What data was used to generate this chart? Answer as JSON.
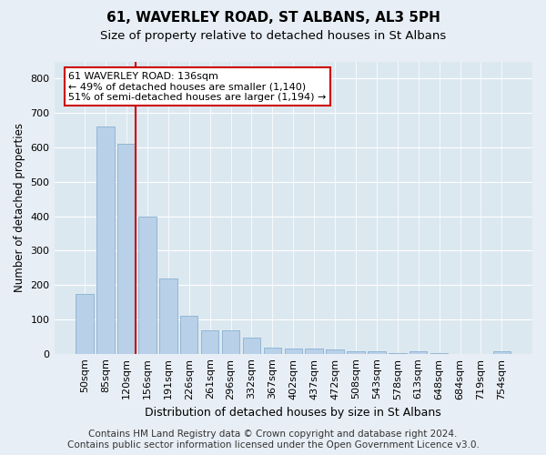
{
  "title": "61, WAVERLEY ROAD, ST ALBANS, AL3 5PH",
  "subtitle": "Size of property relative to detached houses in St Albans",
  "xlabel": "Distribution of detached houses by size in St Albans",
  "ylabel": "Number of detached properties",
  "bar_labels": [
    "50sqm",
    "85sqm",
    "120sqm",
    "156sqm",
    "191sqm",
    "226sqm",
    "261sqm",
    "296sqm",
    "332sqm",
    "367sqm",
    "402sqm",
    "437sqm",
    "472sqm",
    "508sqm",
    "543sqm",
    "578sqm",
    "613sqm",
    "648sqm",
    "684sqm",
    "719sqm",
    "754sqm"
  ],
  "bar_values": [
    175,
    660,
    610,
    400,
    218,
    110,
    67,
    67,
    48,
    18,
    16,
    16,
    13,
    8,
    8,
    3,
    8,
    3,
    0,
    0,
    7
  ],
  "bar_color": "#b8d0e8",
  "bar_edge_color": "#8ab0d0",
  "vline_x_index": 2,
  "vline_color": "#cc0000",
  "annotation_text": "61 WAVERLEY ROAD: 136sqm\n← 49% of detached houses are smaller (1,140)\n51% of semi-detached houses are larger (1,194) →",
  "annotation_box_facecolor": "#ffffff",
  "annotation_box_edge_color": "#cc0000",
  "ylim": [
    0,
    850
  ],
  "yticks": [
    0,
    100,
    200,
    300,
    400,
    500,
    600,
    700,
    800
  ],
  "bg_color": "#e8eef5",
  "plot_bg_color": "#dce8f0",
  "footer": "Contains HM Land Registry data © Crown copyright and database right 2024.\nContains public sector information licensed under the Open Government Licence v3.0.",
  "title_fontsize": 11,
  "subtitle_fontsize": 9.5,
  "footer_fontsize": 7.5,
  "tick_fontsize": 8,
  "ylabel_fontsize": 8.5,
  "xlabel_fontsize": 9
}
